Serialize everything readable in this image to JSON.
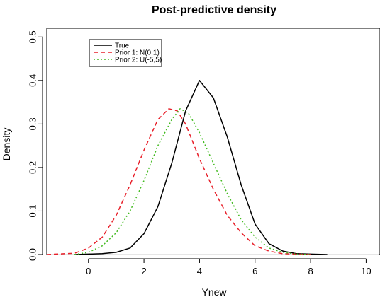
{
  "chart_data": {
    "type": "line",
    "title": "Post-predictive density",
    "xlabel": "Ynew",
    "ylabel": "Density",
    "xlim": [
      -1.5,
      10.5
    ],
    "ylim": [
      0,
      0.52
    ],
    "x_ticks": [
      0,
      2,
      4,
      6,
      8,
      10
    ],
    "x_tick_labels": [
      "0",
      "2",
      "4",
      "6",
      "8",
      "10"
    ],
    "y_ticks": [
      0.0,
      0.1,
      0.2,
      0.3,
      0.4,
      0.5
    ],
    "y_tick_labels": [
      "0.0",
      "0.1",
      "0.2",
      "0.3",
      "0.4",
      "0.5"
    ],
    "legend_position": "top-left",
    "baseline": {
      "y": 0,
      "color": "#cccccc"
    },
    "series": [
      {
        "name": "True",
        "color": "#000000",
        "dash": "solid",
        "x": [
          -0.5,
          0.5,
          1.0,
          1.5,
          2.0,
          2.5,
          3.0,
          3.5,
          4.0,
          4.5,
          5.0,
          5.5,
          6.0,
          6.5,
          7.0,
          7.5,
          8.0,
          8.6
        ],
        "y": [
          0.0,
          0.002,
          0.005,
          0.015,
          0.048,
          0.11,
          0.21,
          0.33,
          0.4,
          0.36,
          0.27,
          0.16,
          0.07,
          0.025,
          0.008,
          0.002,
          0.001,
          0.0
        ]
      },
      {
        "name": "Prior 1: N(0,1)",
        "color": "#e8202a",
        "dash": "dashed",
        "x": [
          -1.5,
          -0.5,
          0.0,
          0.5,
          1.0,
          1.5,
          2.0,
          2.5,
          2.9,
          3.2,
          3.5,
          4.0,
          4.5,
          5.0,
          5.5,
          6.0,
          6.5,
          7.0,
          7.5,
          8.0
        ],
        "y": [
          0.0,
          0.003,
          0.015,
          0.04,
          0.09,
          0.16,
          0.24,
          0.31,
          0.335,
          0.33,
          0.3,
          0.22,
          0.15,
          0.09,
          0.05,
          0.02,
          0.008,
          0.002,
          0.001,
          0.0
        ]
      },
      {
        "name": "Prior 2: U(-5,5)",
        "color": "#44bb22",
        "dash": "dotted",
        "x": [
          -0.5,
          0.0,
          0.5,
          1.0,
          1.5,
          2.0,
          2.5,
          3.0,
          3.3,
          3.6,
          4.0,
          4.5,
          5.0,
          5.5,
          6.0,
          6.5,
          7.0,
          7.5,
          8.0
        ],
        "y": [
          0.0,
          0.005,
          0.02,
          0.05,
          0.1,
          0.17,
          0.25,
          0.31,
          0.335,
          0.325,
          0.28,
          0.21,
          0.14,
          0.08,
          0.04,
          0.015,
          0.005,
          0.001,
          0.0
        ]
      }
    ]
  }
}
